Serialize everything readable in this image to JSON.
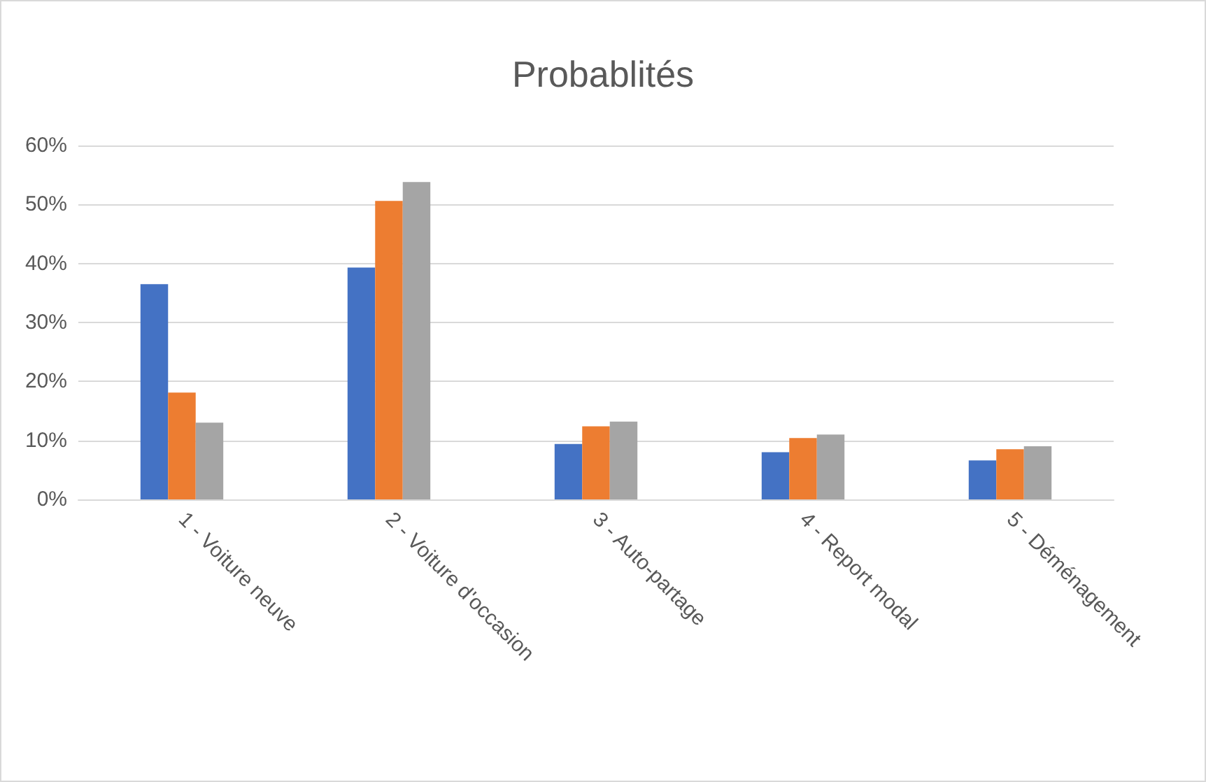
{
  "chart_data": {
    "type": "bar",
    "title": "Probablités",
    "categories": [
      "1 - Voiture neuve",
      "2 - Voiture d'occasion",
      "3 - Auto-partage",
      "4 - Report modal",
      "5 - Déménagement"
    ],
    "series": [
      {
        "color": "#4472c4",
        "values": [
          36.5,
          39.3,
          9.4,
          8.0,
          6.6
        ]
      },
      {
        "color": "#ed7d31",
        "values": [
          18.1,
          50.6,
          12.4,
          10.4,
          8.5
        ]
      },
      {
        "color": "#a5a5a5",
        "values": [
          13.0,
          53.8,
          13.2,
          11.0,
          9.0
        ]
      }
    ],
    "ylim": [
      0,
      60
    ],
    "yticks": [
      {
        "value": 0,
        "label": "0%"
      },
      {
        "value": 10,
        "label": "10%"
      },
      {
        "value": 20,
        "label": "20%"
      },
      {
        "value": 30,
        "label": "30%"
      },
      {
        "value": 40,
        "label": "40%"
      },
      {
        "value": 50,
        "label": "50%"
      },
      {
        "value": 60,
        "label": "60%"
      }
    ],
    "grid": "y"
  }
}
